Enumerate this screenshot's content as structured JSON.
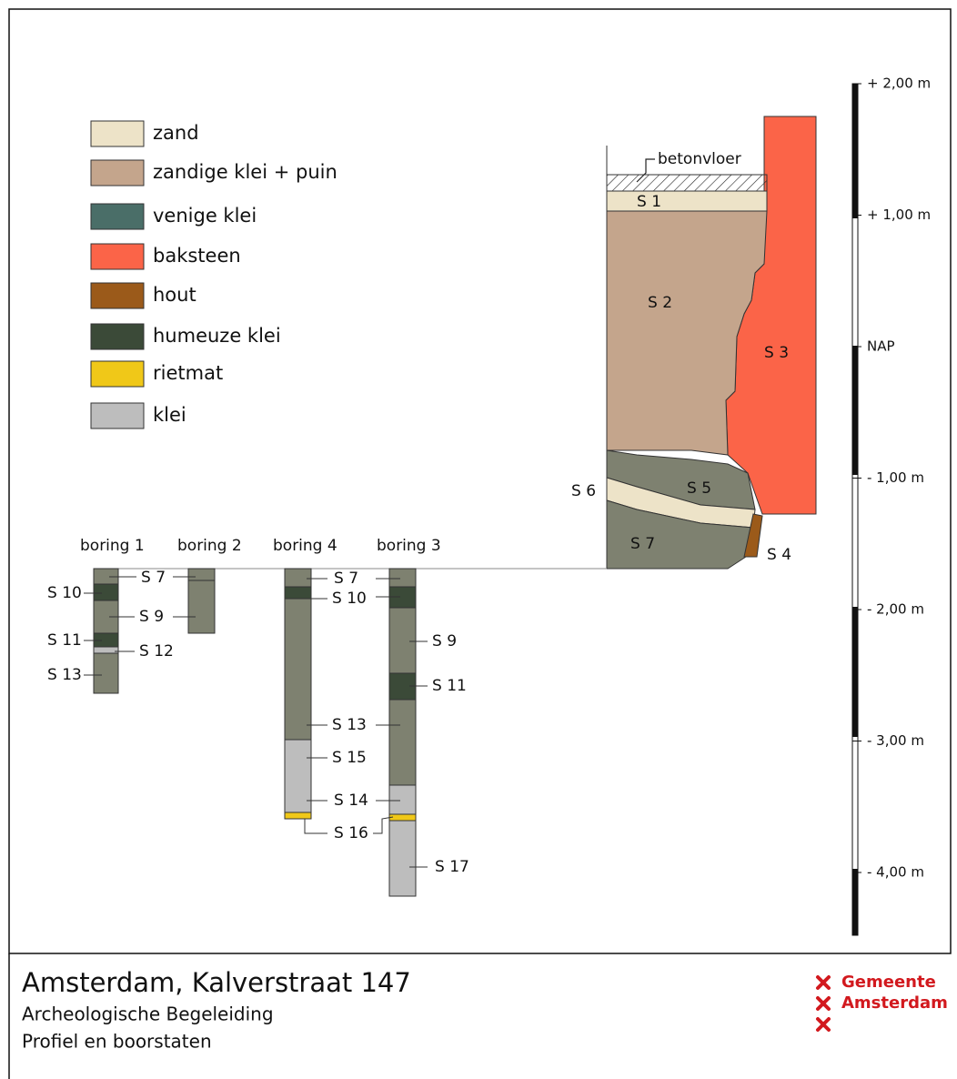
{
  "legend": [
    {
      "label": "zand",
      "color": "#ede3c8"
    },
    {
      "label": "zandige klei + puin",
      "color": "#c4a58c"
    },
    {
      "label": "venige klei",
      "color": "#4a6e68"
    },
    {
      "label": "baksteen",
      "color": "#fb6448"
    },
    {
      "label": "hout",
      "color": "#9b5a1a"
    },
    {
      "label": "humeuze klei",
      "color": "#3b4a38"
    },
    {
      "label": "rietmat",
      "color": "#f0c818"
    },
    {
      "label": "klei",
      "color": "#bdbdbd"
    }
  ],
  "profile": {
    "floor": "betonvloer",
    "layers": [
      "S 1",
      "S 2",
      "S 3",
      "S 5",
      "S 6",
      "S 7",
      "S 4"
    ]
  },
  "borings": [
    {
      "name": "boring 1",
      "labels": [
        "S 7",
        "S 10",
        "S 9",
        "S 11",
        "S 12",
        "S 13"
      ]
    },
    {
      "name": "boring 2",
      "labels": []
    },
    {
      "name": "boring 4",
      "labels": [
        "S 7",
        "S 10",
        "S 13",
        "S 15",
        "S 14",
        "S 16"
      ]
    },
    {
      "name": "boring 3",
      "labels": [
        "S 9",
        "S 11",
        "S 17"
      ]
    }
  ],
  "scale": [
    "+ 2,00 m",
    "+ 1,00 m",
    "NAP",
    "- 1,00 m",
    "- 2,00 m",
    "- 3,00 m",
    "- 4,00 m"
  ],
  "footer": {
    "title": "Amsterdam, Kalverstraat 147",
    "lines": [
      "Archeologische Begeleiding",
      "Profiel en boorstaten"
    ]
  },
  "logo": [
    "Gemeente",
    "Amsterdam"
  ]
}
